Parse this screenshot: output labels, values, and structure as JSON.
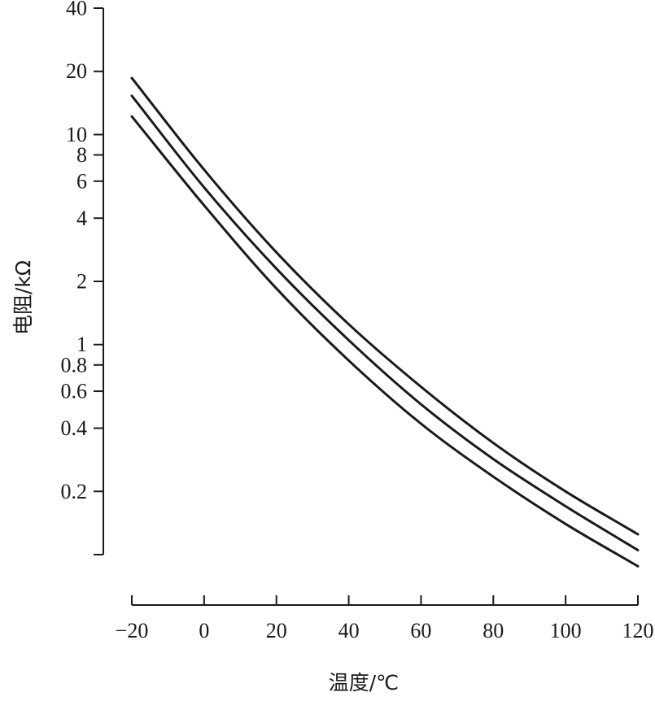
{
  "chart_data": {
    "type": "line",
    "xlabel": "温度/℃",
    "ylabel": "电阻/kΩ",
    "xlim": [
      -20,
      120
    ],
    "ylim": [
      0.1,
      40
    ],
    "y_scale": "log",
    "grid": false,
    "legend": "none",
    "line_color": "#1a1a1a",
    "x_ticks": [
      {
        "value": -20,
        "label": "−20"
      },
      {
        "value": 0,
        "label": "0"
      },
      {
        "value": 20,
        "label": "20"
      },
      {
        "value": 40,
        "label": "40"
      },
      {
        "value": 60,
        "label": "60"
      },
      {
        "value": 80,
        "label": "80"
      },
      {
        "value": 100,
        "label": "100"
      },
      {
        "value": 120,
        "label": "120"
      }
    ],
    "y_ticks": [
      {
        "value": 0.1,
        "label": ""
      },
      {
        "value": 0.2,
        "label": "0.2"
      },
      {
        "value": 0.4,
        "label": "0.4"
      },
      {
        "value": 0.6,
        "label": "0.6"
      },
      {
        "value": 0.8,
        "label": "0.8"
      },
      {
        "value": 1,
        "label": "1"
      },
      {
        "value": 2,
        "label": "2"
      },
      {
        "value": 4,
        "label": "4"
      },
      {
        "value": 6,
        "label": "6"
      },
      {
        "value": 8,
        "label": "8"
      },
      {
        "value": 10,
        "label": "10"
      },
      {
        "value": 20,
        "label": "20"
      },
      {
        "value": 40,
        "label": "40"
      }
    ],
    "series": [
      {
        "x": [
          -20,
          0,
          20,
          40,
          60,
          80,
          100,
          120
        ],
        "values": [
          18.6,
          6.8,
          2.75,
          1.25,
          0.63,
          0.34,
          0.2,
          0.125
        ]
      },
      {
        "x": [
          -20,
          0,
          20,
          40,
          60,
          80,
          100,
          120
        ],
        "values": [
          15.3,
          5.6,
          2.3,
          1.05,
          0.52,
          0.285,
          0.17,
          0.105
        ]
      },
      {
        "x": [
          -20,
          0,
          20,
          40,
          60,
          80,
          100,
          120
        ],
        "values": [
          12.2,
          4.6,
          1.85,
          0.84,
          0.42,
          0.235,
          0.14,
          0.088
        ]
      }
    ]
  }
}
